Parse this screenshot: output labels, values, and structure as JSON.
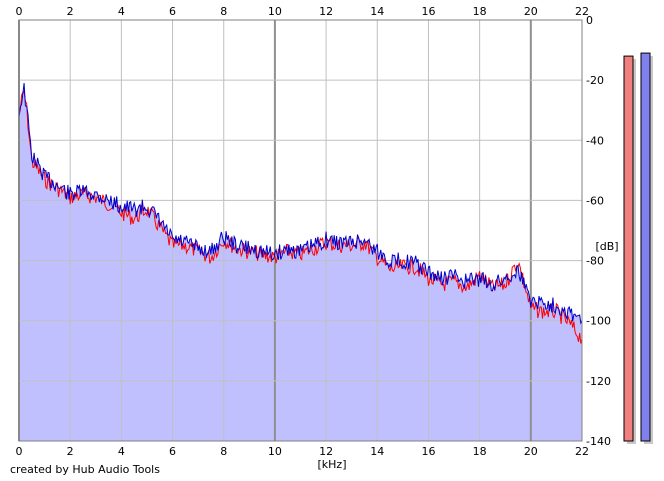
{
  "credit": "created by Hub Audio Tools",
  "colors": {
    "fill": "#c0c0ff",
    "left_channel": "#ff0000",
    "right_channel": "#0000cc",
    "grid": "#c0c0c0",
    "meter_left": "#f08080",
    "meter_right": "#8080ee"
  },
  "chart_data": {
    "type": "line",
    "xlabel": "[kHz]",
    "ylabel": "[dB]",
    "xlim": [
      0,
      22
    ],
    "ylim": [
      -140,
      0
    ],
    "x_ticks": [
      0,
      2,
      4,
      6,
      8,
      10,
      12,
      14,
      16,
      18,
      20,
      22
    ],
    "y_ticks": [
      0,
      -20,
      -40,
      -60,
      -80,
      -100,
      -120,
      -140
    ],
    "grid": true,
    "x": [
      0,
      0.1,
      0.2,
      0.3,
      0.5,
      1,
      1.5,
      2,
      2.5,
      3,
      3.5,
      4,
      4.5,
      5,
      5.5,
      6,
      6.5,
      7,
      7.5,
      8,
      8.5,
      9,
      9.5,
      10,
      10.5,
      11,
      11.5,
      12,
      12.5,
      13,
      13.5,
      14,
      14.5,
      15,
      15.5,
      16,
      16.5,
      17,
      17.5,
      18,
      18.5,
      19,
      19.5,
      20,
      20.5,
      21,
      21.5,
      22
    ],
    "series": [
      {
        "values": [
          -32,
          -27,
          -24,
          -30,
          -47,
          -53,
          -56,
          -59,
          -58,
          -59,
          -61,
          -64,
          -66,
          -63,
          -69,
          -75,
          -75,
          -77,
          -79,
          -73,
          -76,
          -77,
          -78,
          -79,
          -77,
          -78,
          -76,
          -74,
          -75,
          -75,
          -74,
          -79,
          -83,
          -82,
          -82,
          -86,
          -88,
          -87,
          -89,
          -85,
          -89,
          -88,
          -80,
          -96,
          -97,
          -97,
          -101,
          -106
        ]
      },
      {
        "values": [
          -31,
          -26,
          -23,
          -30,
          -45,
          -52,
          -55,
          -58,
          -57,
          -58,
          -60,
          -62,
          -63,
          -62,
          -67,
          -73,
          -74,
          -76,
          -77,
          -72,
          -75,
          -76,
          -77,
          -78,
          -76,
          -77,
          -75,
          -73,
          -74,
          -74,
          -73,
          -77,
          -80,
          -80,
          -81,
          -84,
          -86,
          -85,
          -87,
          -86,
          -88,
          -86,
          -83,
          -93,
          -94,
          -95,
          -97,
          -100
        ]
      }
    ],
    "meters": {
      "left_level_db": -12,
      "right_level_db": -11
    }
  }
}
